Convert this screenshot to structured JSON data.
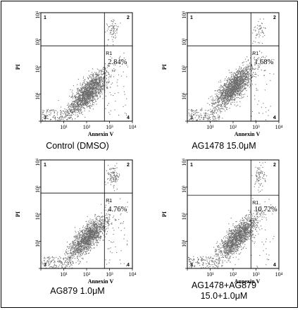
{
  "chart_data": [
    {
      "type": "scatter",
      "title": "",
      "xlabel": "Annexin V",
      "ylabel": "PI",
      "xscale": "log",
      "yscale": "log",
      "xlim": [
        1,
        10000
      ],
      "ylim": [
        1,
        10000
      ],
      "x_ticks": [
        "10¹",
        "10²",
        "10³",
        "10⁴"
      ],
      "y_ticks": [
        "10¹",
        "10²",
        "10³",
        "10⁴"
      ],
      "gate_lines": {
        "x": 600,
        "y": 600
      },
      "quadrant_labels": [
        "1",
        "2",
        "3",
        "4"
      ],
      "gate_label": "R1",
      "percentage": "2.84%",
      "caption": [
        "Control (DMSO)"
      ],
      "cluster": {
        "main_center": [
          120,
          12
        ],
        "main_count": 1600,
        "q2_count": 60
      }
    },
    {
      "type": "scatter",
      "title": "",
      "xlabel": "Annexin V",
      "ylabel": "PI",
      "xscale": "log",
      "yscale": "log",
      "xlim": [
        1,
        10000
      ],
      "ylim": [
        1,
        10000
      ],
      "x_ticks": [
        "10¹",
        "10²",
        "10³",
        "10⁴"
      ],
      "y_ticks": [
        "10¹",
        "10²",
        "10³",
        "10⁴"
      ],
      "gate_lines": {
        "x": 600,
        "y": 600
      },
      "quadrant_labels": [
        "1",
        "2",
        "3",
        "4"
      ],
      "gate_label": "R1",
      "percentage": "1.68%",
      "caption": [
        "AG1478 15.0μM"
      ],
      "cluster": {
        "main_center": [
          100,
          18
        ],
        "main_count": 1600,
        "q2_count": 40
      }
    },
    {
      "type": "scatter",
      "title": "",
      "xlabel": "Annexin V",
      "ylabel": "PI",
      "xscale": "log",
      "yscale": "log",
      "xlim": [
        1,
        10000
      ],
      "ylim": [
        1,
        10000
      ],
      "x_ticks": [
        "10¹",
        "10²",
        "10³",
        "10⁴"
      ],
      "y_ticks": [
        "10¹",
        "10²",
        "10³",
        "10⁴"
      ],
      "gate_lines": {
        "x": 600,
        "y": 600
      },
      "quadrant_labels": [
        "1",
        "2",
        "3",
        "4"
      ],
      "gate_label": "R1",
      "percentage": "4.76%",
      "caption": [
        "AG879 1.0μM"
      ],
      "cluster": {
        "main_center": [
          110,
          14
        ],
        "main_count": 1500,
        "q2_count": 90
      }
    },
    {
      "type": "scatter",
      "title": "",
      "xlabel": "Annexin V",
      "ylabel": "PI",
      "xscale": "log",
      "yscale": "log",
      "xlim": [
        1,
        10000
      ],
      "ylim": [
        1,
        10000
      ],
      "x_ticks": [
        "10¹",
        "10²",
        "10³",
        "10⁴"
      ],
      "y_ticks": [
        "10¹",
        "10²",
        "10³",
        "10⁴"
      ],
      "gate_lines": {
        "x": 600,
        "y": 500
      },
      "quadrant_labels": [
        "1",
        "2",
        "3",
        "4"
      ],
      "gate_label": "R1",
      "percentage": "10.72%",
      "caption": [
        "AG1478+AG879",
        "15.0+1.0μM"
      ],
      "cluster": {
        "main_center": [
          150,
          14
        ],
        "main_count": 1500,
        "q2_count": 70
      }
    }
  ]
}
